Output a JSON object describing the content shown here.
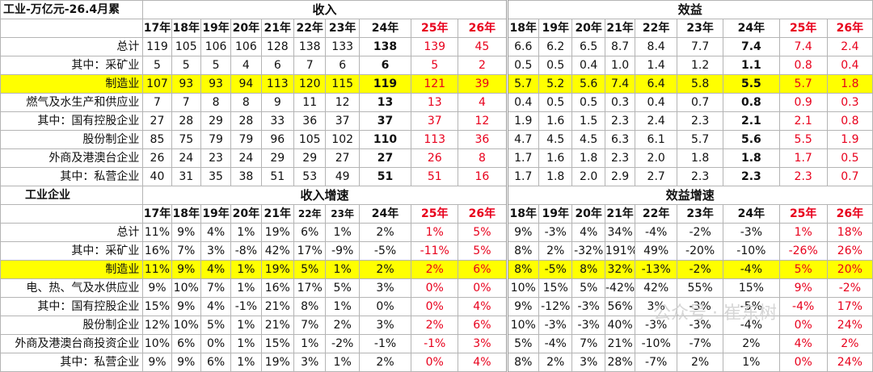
{
  "top": {
    "title": "工业-万亿元-26.4月累",
    "group1": "收入",
    "group2": "效益",
    "years1": [
      "17年",
      "18年",
      "19年",
      "20年",
      "21年",
      "22年",
      "23年",
      "24年",
      "25年",
      "26年"
    ],
    "years2": [
      "18年",
      "19年",
      "20年",
      "21年",
      "22年",
      "23年",
      "24年",
      "25年",
      "26年"
    ],
    "rows": [
      {
        "label": "总计",
        "rev": [
          "119",
          "105",
          "106",
          "106",
          "128",
          "138",
          "133",
          "138",
          "139",
          "45"
        ],
        "prof": [
          "6.6",
          "6.2",
          "6.5",
          "8.7",
          "8.4",
          "7.7",
          "7.4",
          "7.4",
          "2.4"
        ]
      },
      {
        "label": "其中：采矿业",
        "rev": [
          "5",
          "5",
          "5",
          "4",
          "6",
          "7",
          "6",
          "6",
          "5",
          "2"
        ],
        "prof": [
          "0.5",
          "0.5",
          "0.4",
          "1.0",
          "1.4",
          "1.2",
          "1.1",
          "0.8",
          "0.4"
        ]
      },
      {
        "label": "制造业",
        "rev": [
          "107",
          "93",
          "93",
          "94",
          "113",
          "120",
          "115",
          "119",
          "121",
          "39"
        ],
        "prof": [
          "5.7",
          "5.2",
          "5.6",
          "7.4",
          "6.4",
          "5.8",
          "5.5",
          "5.7",
          "1.8"
        ]
      },
      {
        "label": "燃气及水生产和供应业",
        "rev": [
          "7",
          "7",
          "8",
          "8",
          "9",
          "11",
          "12",
          "13",
          "13",
          "4"
        ],
        "prof": [
          "0.4",
          "0.5",
          "0.5",
          "0.3",
          "0.4",
          "0.7",
          "0.8",
          "0.9",
          "0.3"
        ]
      },
      {
        "label": "其中：国有控股企业",
        "rev": [
          "27",
          "28",
          "29",
          "28",
          "33",
          "36",
          "37",
          "37",
          "37",
          "12"
        ],
        "prof": [
          "1.9",
          "1.6",
          "1.5",
          "2.3",
          "2.4",
          "2.3",
          "2.1",
          "2.1",
          "0.8"
        ]
      },
      {
        "label": "股份制企业",
        "rev": [
          "85",
          "75",
          "79",
          "79",
          "96",
          "105",
          "102",
          "110",
          "113",
          "36"
        ],
        "prof": [
          "4.7",
          "4.5",
          "4.5",
          "6.3",
          "6.1",
          "5.7",
          "5.6",
          "5.5",
          "1.9"
        ]
      },
      {
        "label": "外商及港澳台企业",
        "rev": [
          "26",
          "24",
          "23",
          "24",
          "29",
          "29",
          "27",
          "27",
          "26",
          "8"
        ],
        "prof": [
          "1.7",
          "1.6",
          "1.8",
          "2.3",
          "2.0",
          "1.8",
          "1.8",
          "1.7",
          "0.5"
        ]
      },
      {
        "label": "其中：私营企业",
        "rev": [
          "40",
          "31",
          "35",
          "38",
          "51",
          "53",
          "49",
          "51",
          "51",
          "16"
        ],
        "prof": [
          "1.7",
          "1.8",
          "2.0",
          "2.9",
          "2.7",
          "2.3",
          "2.3",
          "2.3",
          "0.7"
        ]
      }
    ]
  },
  "bottom": {
    "title": "工业企业",
    "group1": "收入增速",
    "group2": "效益增速",
    "years1": [
      "17年",
      "18年",
      "19年",
      "20年",
      "21年",
      "22年",
      "23年",
      "24年",
      "25年",
      "26年"
    ],
    "years2": [
      "18年",
      "19年",
      "20年",
      "21年",
      "22年",
      "23年",
      "24年",
      "25年",
      "26年"
    ],
    "rows": [
      {
        "label": "总计",
        "rev": [
          "11%",
          "9%",
          "4%",
          "1%",
          "19%",
          "6%",
          "1%",
          "2%",
          "1%",
          "5%"
        ],
        "prof": [
          "9%",
          "-3%",
          "4%",
          "34%",
          "-4%",
          "-2%",
          "-3%",
          "1%",
          "18%"
        ]
      },
      {
        "label": "其中：采矿业",
        "rev": [
          "16%",
          "7%",
          "3%",
          "-8%",
          "42%",
          "17%",
          "-9%",
          "-5%",
          "-11%",
          "5%"
        ],
        "prof": [
          "8%",
          "2%",
          "-32%",
          "191%",
          "49%",
          "-20%",
          "-10%",
          "-26%",
          "26%"
        ]
      },
      {
        "label": "制造业",
        "rev": [
          "11%",
          "9%",
          "4%",
          "1%",
          "19%",
          "5%",
          "1%",
          "2%",
          "2%",
          "6%"
        ],
        "prof": [
          "8%",
          "-5%",
          "8%",
          "32%",
          "-13%",
          "-2%",
          "-4%",
          "5%",
          "20%"
        ]
      },
      {
        "label": "电、热、气及水供应业",
        "rev": [
          "9%",
          "10%",
          "7%",
          "1%",
          "16%",
          "17%",
          "5%",
          "3%",
          "0%",
          "0%"
        ],
        "prof": [
          "10%",
          "15%",
          "5%",
          "-42%",
          "42%",
          "55%",
          "15%",
          "9%",
          "-2%"
        ]
      },
      {
        "label": "其中：国有控股企业",
        "rev": [
          "15%",
          "9%",
          "4%",
          "-1%",
          "21%",
          "8%",
          "1%",
          "0%",
          "0%",
          "4%"
        ],
        "prof": [
          "9%",
          "-12%",
          "-3%",
          "56%",
          "3%",
          "-3%",
          "-5%",
          "-4%",
          "17%"
        ]
      },
      {
        "label": "股份制企业",
        "rev": [
          "12%",
          "10%",
          "5%",
          "1%",
          "21%",
          "7%",
          "2%",
          "3%",
          "2%",
          "6%"
        ],
        "prof": [
          "10%",
          "-3%",
          "-3%",
          "40%",
          "-3%",
          "-3%",
          "-4%",
          "0%",
          "24%"
        ]
      },
      {
        "label": "外商及港澳台商投资企业",
        "rev": [
          "10%",
          "6%",
          "0%",
          "1%",
          "15%",
          "1%",
          "-2%",
          "-1%",
          "-1%",
          "3%"
        ],
        "prof": [
          "5%",
          "-4%",
          "7%",
          "21%",
          "-10%",
          "-7%",
          "2%",
          "4%",
          "2%"
        ]
      },
      {
        "label": "其中：私营企业",
        "rev": [
          "9%",
          "9%",
          "6%",
          "1%",
          "19%",
          "3%",
          "1%",
          "2%",
          "0%",
          "4%"
        ],
        "prof": [
          "8%",
          "2%",
          "3%",
          "28%",
          "-7%",
          "2%",
          "1%",
          "0%",
          "24%"
        ]
      }
    ]
  },
  "watermark": "公众号 · 崔东树"
}
